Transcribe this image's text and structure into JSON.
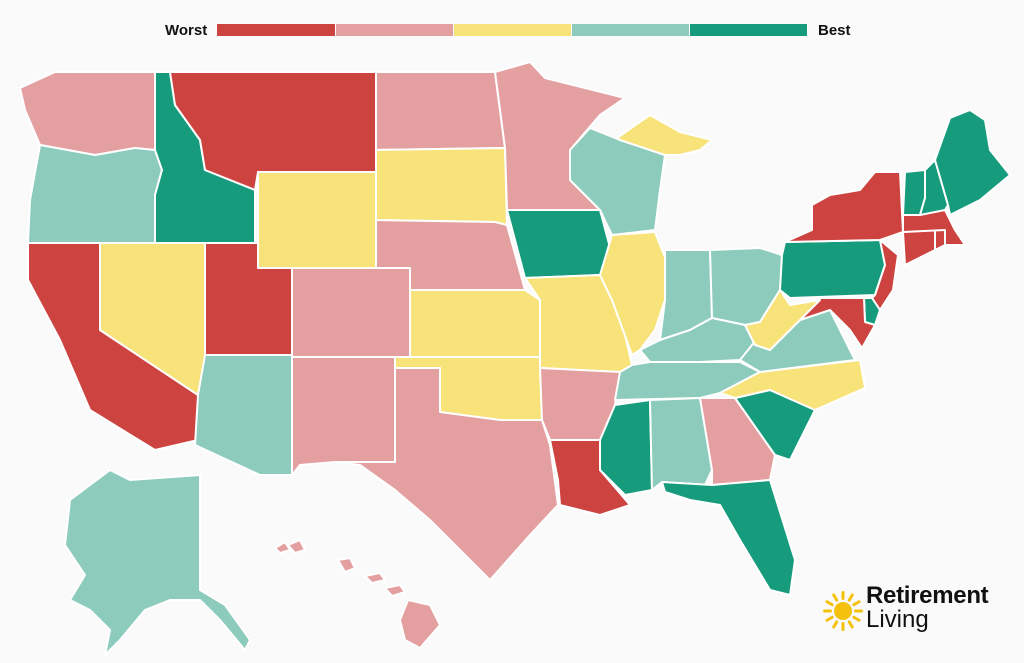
{
  "legend": {
    "low_label": "Worst",
    "high_label": "Best",
    "scale": [
      {
        "name": "worst",
        "color": "#cc4340"
      },
      {
        "name": "poor",
        "color": "#e4a0a0"
      },
      {
        "name": "average",
        "color": "#f8e27a"
      },
      {
        "name": "good",
        "color": "#8dcbbd"
      },
      {
        "name": "best",
        "color": "#169c7c"
      }
    ]
  },
  "brand": {
    "word1": "Retirement",
    "word2": "Living",
    "icon": "sun-icon",
    "icon_color": "#f4c20d"
  },
  "states": {
    "WA": "poor",
    "OR": "good",
    "CA": "worst",
    "NV": "average",
    "ID": "best",
    "MT": "worst",
    "WY": "average",
    "UT": "worst",
    "AZ": "good",
    "CO": "poor",
    "NM": "poor",
    "ND": "poor",
    "SD": "average",
    "NE": "poor",
    "KS": "average",
    "OK": "average",
    "TX": "poor",
    "MN": "poor",
    "IA": "best",
    "MO": "average",
    "AR": "poor",
    "LA": "worst",
    "WI": "good",
    "IL": "average",
    "MI": "average",
    "IN": "good",
    "OH": "good",
    "KY": "good",
    "TN": "good",
    "MS": "best",
    "AL": "good",
    "GA": "poor",
    "FL": "best",
    "SC": "best",
    "NC": "average",
    "VA": "good",
    "WV": "average",
    "PA": "best",
    "NY": "worst",
    "NJ": "worst",
    "DE": "best",
    "MD": "worst",
    "CT": "worst",
    "RI": "worst",
    "MA": "worst",
    "VT": "best",
    "NH": "best",
    "ME": "best",
    "AK": "good",
    "HI": "poor"
  }
}
